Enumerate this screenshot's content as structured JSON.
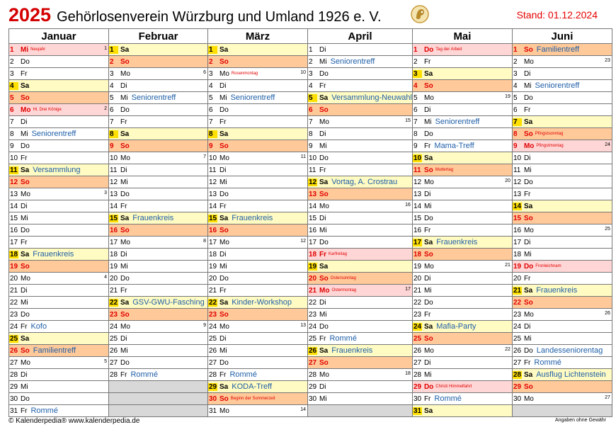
{
  "header": {
    "year": "2025",
    "title": "Gehörlosenverein Würzburg und Umland 1926 e. V.",
    "stand": "Stand: 01.12.2024"
  },
  "footer": {
    "left": "© Kalenderpedia®   www.kalenderpedia.de",
    "right": "Angaben ohne Gewähr"
  },
  "colors": {
    "saturday": "#fffbc2",
    "saturday_number": "#ffe000",
    "sunday": "#ffc999",
    "holiday": "#ffd6d6",
    "empty": "#d8d8d8",
    "event_text": "#1f5fa8",
    "holiday_text": "#e00000"
  },
  "months": [
    {
      "name": "Januar",
      "days": [
        {
          "d": "1",
          "wd": "Mi",
          "type": "holiday",
          "hol": "Neujahr",
          "kw": "1"
        },
        {
          "d": "2",
          "wd": "Do"
        },
        {
          "d": "3",
          "wd": "Fr"
        },
        {
          "d": "4",
          "wd": "Sa",
          "type": "sat"
        },
        {
          "d": "5",
          "wd": "So",
          "type": "sun"
        },
        {
          "d": "6",
          "wd": "Mo",
          "type": "holiday",
          "hol": "Hl. Drei Könige",
          "kw": "2"
        },
        {
          "d": "7",
          "wd": "Di"
        },
        {
          "d": "8",
          "wd": "Mi",
          "ev": "Seniorentreff"
        },
        {
          "d": "9",
          "wd": "Do"
        },
        {
          "d": "10",
          "wd": "Fr"
        },
        {
          "d": "11",
          "wd": "Sa",
          "type": "sat",
          "ev": "Versammlung"
        },
        {
          "d": "12",
          "wd": "So",
          "type": "sun"
        },
        {
          "d": "13",
          "wd": "Mo",
          "kw": "3"
        },
        {
          "d": "14",
          "wd": "Di"
        },
        {
          "d": "15",
          "wd": "Mi"
        },
        {
          "d": "16",
          "wd": "Do"
        },
        {
          "d": "17",
          "wd": "Fr"
        },
        {
          "d": "18",
          "wd": "Sa",
          "type": "sat",
          "ev": "Frauenkreis"
        },
        {
          "d": "19",
          "wd": "So",
          "type": "sun"
        },
        {
          "d": "20",
          "wd": "Mo",
          "kw": "4"
        },
        {
          "d": "21",
          "wd": "Di"
        },
        {
          "d": "22",
          "wd": "Mi"
        },
        {
          "d": "23",
          "wd": "Do"
        },
        {
          "d": "24",
          "wd": "Fr",
          "ev": "Kofo"
        },
        {
          "d": "25",
          "wd": "Sa",
          "type": "sat"
        },
        {
          "d": "26",
          "wd": "So",
          "type": "sun",
          "ev": "Familientreff"
        },
        {
          "d": "27",
          "wd": "Mo",
          "kw": "5"
        },
        {
          "d": "28",
          "wd": "Di"
        },
        {
          "d": "29",
          "wd": "Mi"
        },
        {
          "d": "30",
          "wd": "Do"
        },
        {
          "d": "31",
          "wd": "Fr",
          "ev": "Rommé"
        }
      ]
    },
    {
      "name": "Februar",
      "days": [
        {
          "d": "1",
          "wd": "Sa",
          "type": "sat"
        },
        {
          "d": "2",
          "wd": "So",
          "type": "sun"
        },
        {
          "d": "3",
          "wd": "Mo",
          "kw": "6"
        },
        {
          "d": "4",
          "wd": "Di"
        },
        {
          "d": "5",
          "wd": "Mi",
          "ev": "Seniorentreff"
        },
        {
          "d": "6",
          "wd": "Do"
        },
        {
          "d": "7",
          "wd": "Fr"
        },
        {
          "d": "8",
          "wd": "Sa",
          "type": "sat"
        },
        {
          "d": "9",
          "wd": "So",
          "type": "sun"
        },
        {
          "d": "10",
          "wd": "Mo",
          "kw": "7"
        },
        {
          "d": "11",
          "wd": "Di"
        },
        {
          "d": "12",
          "wd": "Mi"
        },
        {
          "d": "13",
          "wd": "Do"
        },
        {
          "d": "14",
          "wd": "Fr"
        },
        {
          "d": "15",
          "wd": "Sa",
          "type": "sat",
          "ev": "Frauenkreis"
        },
        {
          "d": "16",
          "wd": "So",
          "type": "sun"
        },
        {
          "d": "17",
          "wd": "Mo",
          "kw": "8"
        },
        {
          "d": "18",
          "wd": "Di"
        },
        {
          "d": "19",
          "wd": "Mi"
        },
        {
          "d": "20",
          "wd": "Do"
        },
        {
          "d": "21",
          "wd": "Fr"
        },
        {
          "d": "22",
          "wd": "Sa",
          "type": "sat",
          "ev": "GSV-GWU-Fasching"
        },
        {
          "d": "23",
          "wd": "So",
          "type": "sun"
        },
        {
          "d": "24",
          "wd": "Mo",
          "kw": "9"
        },
        {
          "d": "25",
          "wd": "Di"
        },
        {
          "d": "26",
          "wd": "Mi"
        },
        {
          "d": "27",
          "wd": "Do"
        },
        {
          "d": "28",
          "wd": "Fr",
          "ev": "Rommé"
        },
        {
          "type": "empty"
        },
        {
          "type": "empty"
        },
        {
          "type": "empty"
        }
      ]
    },
    {
      "name": "März",
      "days": [
        {
          "d": "1",
          "wd": "Sa",
          "type": "sat"
        },
        {
          "d": "2",
          "wd": "So",
          "type": "sun"
        },
        {
          "d": "3",
          "wd": "Mo",
          "hol": "Rosenmontag",
          "kw": "10"
        },
        {
          "d": "4",
          "wd": "Di"
        },
        {
          "d": "5",
          "wd": "Mi",
          "ev": "Seniorentreff"
        },
        {
          "d": "6",
          "wd": "Do"
        },
        {
          "d": "7",
          "wd": "Fr"
        },
        {
          "d": "8",
          "wd": "Sa",
          "type": "sat"
        },
        {
          "d": "9",
          "wd": "So",
          "type": "sun"
        },
        {
          "d": "10",
          "wd": "Mo",
          "kw": "11"
        },
        {
          "d": "11",
          "wd": "Di"
        },
        {
          "d": "12",
          "wd": "Mi"
        },
        {
          "d": "13",
          "wd": "Do"
        },
        {
          "d": "14",
          "wd": "Fr"
        },
        {
          "d": "15",
          "wd": "Sa",
          "type": "sat",
          "ev": "Frauenkreis"
        },
        {
          "d": "16",
          "wd": "So",
          "type": "sun"
        },
        {
          "d": "17",
          "wd": "Mo",
          "kw": "12"
        },
        {
          "d": "18",
          "wd": "Di"
        },
        {
          "d": "19",
          "wd": "Mi"
        },
        {
          "d": "20",
          "wd": "Do"
        },
        {
          "d": "21",
          "wd": "Fr"
        },
        {
          "d": "22",
          "wd": "Sa",
          "type": "sat",
          "ev": "Kinder-Workshop"
        },
        {
          "d": "23",
          "wd": "So",
          "type": "sun"
        },
        {
          "d": "24",
          "wd": "Mo",
          "kw": "13"
        },
        {
          "d": "25",
          "wd": "Di"
        },
        {
          "d": "26",
          "wd": "Mi"
        },
        {
          "d": "27",
          "wd": "Do"
        },
        {
          "d": "28",
          "wd": "Fr",
          "ev": "Rommé"
        },
        {
          "d": "29",
          "wd": "Sa",
          "type": "sat",
          "ev": "KODA-Treff"
        },
        {
          "d": "30",
          "wd": "So",
          "type": "sun",
          "hol": "Beginn der Sommerzeit"
        },
        {
          "d": "31",
          "wd": "Mo",
          "kw": "14"
        }
      ]
    },
    {
      "name": "April",
      "days": [
        {
          "d": "1",
          "wd": "Di"
        },
        {
          "d": "2",
          "wd": "Mi",
          "ev": "Seniorentreff"
        },
        {
          "d": "3",
          "wd": "Do"
        },
        {
          "d": "4",
          "wd": "Fr"
        },
        {
          "d": "5",
          "wd": "Sa",
          "type": "sat",
          "ev": "Versammlung-Neuwahl"
        },
        {
          "d": "6",
          "wd": "So",
          "type": "sun"
        },
        {
          "d": "7",
          "wd": "Mo",
          "kw": "15"
        },
        {
          "d": "8",
          "wd": "Di"
        },
        {
          "d": "9",
          "wd": "Mi"
        },
        {
          "d": "10",
          "wd": "Do"
        },
        {
          "d": "11",
          "wd": "Fr"
        },
        {
          "d": "12",
          "wd": "Sa",
          "type": "sat",
          "ev": "Vortag, A. Crostrau"
        },
        {
          "d": "13",
          "wd": "So",
          "type": "sun"
        },
        {
          "d": "14",
          "wd": "Mo",
          "kw": "16"
        },
        {
          "d": "15",
          "wd": "Di"
        },
        {
          "d": "16",
          "wd": "Mi"
        },
        {
          "d": "17",
          "wd": "Do"
        },
        {
          "d": "18",
          "wd": "Fr",
          "type": "holiday",
          "hol": "Karfreitag"
        },
        {
          "d": "19",
          "wd": "Sa",
          "type": "sat"
        },
        {
          "d": "20",
          "wd": "So",
          "type": "sun",
          "hol": "Ostersonntag"
        },
        {
          "d": "21",
          "wd": "Mo",
          "type": "holiday",
          "hol": "Ostermontag",
          "kw": "17"
        },
        {
          "d": "22",
          "wd": "Di"
        },
        {
          "d": "23",
          "wd": "Mi"
        },
        {
          "d": "24",
          "wd": "Do"
        },
        {
          "d": "25",
          "wd": "Fr",
          "ev": "Rommé"
        },
        {
          "d": "26",
          "wd": "Sa",
          "type": "sat",
          "ev": "Frauenkreis"
        },
        {
          "d": "27",
          "wd": "So",
          "type": "sun"
        },
        {
          "d": "28",
          "wd": "Mo",
          "kw": "18"
        },
        {
          "d": "29",
          "wd": "Di"
        },
        {
          "d": "30",
          "wd": "Mi"
        },
        {
          "type": "empty"
        }
      ]
    },
    {
      "name": "Mai",
      "days": [
        {
          "d": "1",
          "wd": "Do",
          "type": "holiday",
          "hol": "Tag der Arbeit"
        },
        {
          "d": "2",
          "wd": "Fr"
        },
        {
          "d": "3",
          "wd": "Sa",
          "type": "sat"
        },
        {
          "d": "4",
          "wd": "So",
          "type": "sun"
        },
        {
          "d": "5",
          "wd": "Mo",
          "kw": "19"
        },
        {
          "d": "6",
          "wd": "Di"
        },
        {
          "d": "7",
          "wd": "Mi",
          "ev": "Seniorentreff"
        },
        {
          "d": "8",
          "wd": "Do"
        },
        {
          "d": "9",
          "wd": "Fr",
          "ev": "Mama-Treff"
        },
        {
          "d": "10",
          "wd": "Sa",
          "type": "sat"
        },
        {
          "d": "11",
          "wd": "So",
          "type": "sun",
          "hol": "Muttertag"
        },
        {
          "d": "12",
          "wd": "Mo",
          "kw": "20"
        },
        {
          "d": "13",
          "wd": "Di"
        },
        {
          "d": "14",
          "wd": "Mi"
        },
        {
          "d": "15",
          "wd": "Do"
        },
        {
          "d": "16",
          "wd": "Fr"
        },
        {
          "d": "17",
          "wd": "Sa",
          "type": "sat",
          "ev": "Frauenkreis"
        },
        {
          "d": "18",
          "wd": "So",
          "type": "sun"
        },
        {
          "d": "19",
          "wd": "Mo",
          "kw": "21"
        },
        {
          "d": "20",
          "wd": "Di"
        },
        {
          "d": "21",
          "wd": "Mi"
        },
        {
          "d": "22",
          "wd": "Do"
        },
        {
          "d": "23",
          "wd": "Fr"
        },
        {
          "d": "24",
          "wd": "Sa",
          "type": "sat",
          "ev": "Mafia-Party"
        },
        {
          "d": "25",
          "wd": "So",
          "type": "sun"
        },
        {
          "d": "26",
          "wd": "Mo",
          "kw": "22"
        },
        {
          "d": "27",
          "wd": "Di"
        },
        {
          "d": "28",
          "wd": "Mi"
        },
        {
          "d": "29",
          "wd": "Do",
          "type": "holiday",
          "hol": "Christi Himmelfahrt"
        },
        {
          "d": "30",
          "wd": "Fr",
          "ev": "Rommé"
        },
        {
          "d": "31",
          "wd": "Sa",
          "type": "sat"
        }
      ]
    },
    {
      "name": "Juni",
      "days": [
        {
          "d": "1",
          "wd": "So",
          "type": "sun",
          "ev": "Familientreff"
        },
        {
          "d": "2",
          "wd": "Mo",
          "kw": "23"
        },
        {
          "d": "3",
          "wd": "Di"
        },
        {
          "d": "4",
          "wd": "Mi",
          "ev": "Seniorentreff"
        },
        {
          "d": "5",
          "wd": "Do"
        },
        {
          "d": "6",
          "wd": "Fr"
        },
        {
          "d": "7",
          "wd": "Sa",
          "type": "sat"
        },
        {
          "d": "8",
          "wd": "So",
          "type": "sun",
          "hol": "Pfingstsonntag"
        },
        {
          "d": "9",
          "wd": "Mo",
          "type": "holiday",
          "hol": "Pfingstmontag",
          "kw": "24"
        },
        {
          "d": "10",
          "wd": "Di"
        },
        {
          "d": "11",
          "wd": "Mi"
        },
        {
          "d": "12",
          "wd": "Do"
        },
        {
          "d": "13",
          "wd": "Fr"
        },
        {
          "d": "14",
          "wd": "Sa",
          "type": "sat"
        },
        {
          "d": "15",
          "wd": "So",
          "type": "sun"
        },
        {
          "d": "16",
          "wd": "Mo",
          "kw": "25"
        },
        {
          "d": "17",
          "wd": "Di"
        },
        {
          "d": "18",
          "wd": "Mi"
        },
        {
          "d": "19",
          "wd": "Do",
          "type": "holiday",
          "hol": "Fronleichnam"
        },
        {
          "d": "20",
          "wd": "Fr"
        },
        {
          "d": "21",
          "wd": "Sa",
          "type": "sat",
          "ev": "Frauenkreis"
        },
        {
          "d": "22",
          "wd": "So",
          "type": "sun"
        },
        {
          "d": "23",
          "wd": "Mo",
          "kw": "26"
        },
        {
          "d": "24",
          "wd": "Di"
        },
        {
          "d": "25",
          "wd": "Mi"
        },
        {
          "d": "26",
          "wd": "Do",
          "ev": "Landesseniorentag"
        },
        {
          "d": "27",
          "wd": "Fr",
          "ev": "Rommé"
        },
        {
          "d": "28",
          "wd": "Sa",
          "type": "sat",
          "ev": "Ausflug Lichtenstein"
        },
        {
          "d": "29",
          "wd": "So",
          "type": "sun"
        },
        {
          "d": "30",
          "wd": "Mo",
          "kw": "27"
        },
        {
          "type": "empty"
        }
      ]
    }
  ]
}
